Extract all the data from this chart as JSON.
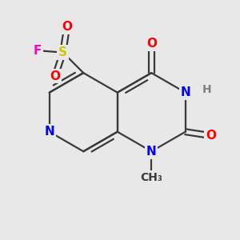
{
  "background_color": "#e8e8e8",
  "bond_color": "#3a3a3a",
  "bond_width": 1.6,
  "atom_colors": {
    "N": "#0000ff",
    "O": "#ff0000",
    "S": "#cccc00",
    "F": "#ff00cc",
    "H": "#808080",
    "C": "#3a3a3a"
  },
  "font_size": 11,
  "figsize": [
    3.0,
    3.0
  ],
  "dpi": 100,
  "xlim": [
    0.0,
    6.0
  ],
  "ylim": [
    0.0,
    6.0
  ]
}
